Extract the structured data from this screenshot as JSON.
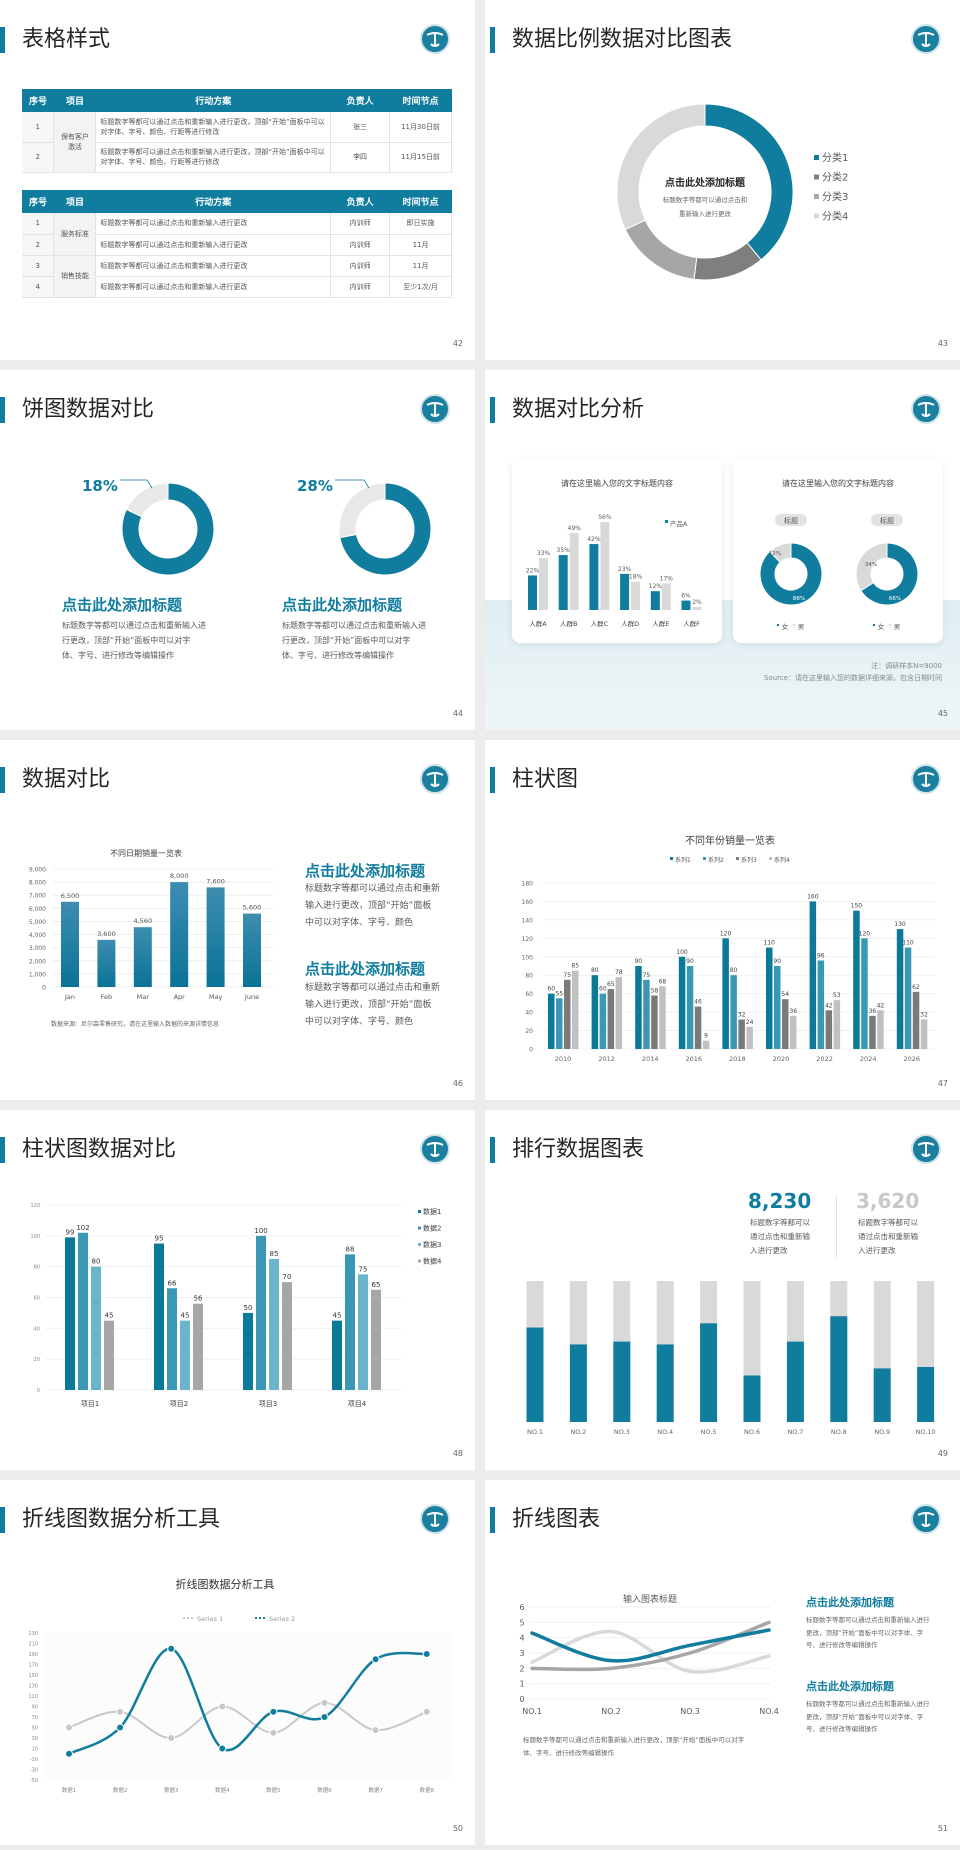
{
  "colors": {
    "accent": "#117d9e",
    "teal2": "#3a98b5",
    "teal3": "#6ab4cc",
    "gray_dark": "#7a7a7a",
    "gray": "#a6a6a6",
    "gray_light": "#d9d9d9"
  },
  "logo_icon": "anchor-emblem",
  "s42": {
    "title": "表格样式",
    "page": "42",
    "tables": [
      {
        "headers": [
          "序号",
          "项目",
          "行动方案",
          "负责人",
          "时间节点"
        ],
        "groups": [
          {
            "label": "保有客户激活",
            "span": 2
          }
        ],
        "rows": [
          {
            "no": "1",
            "action": "标题数字等都可以通过点击和重新输入进行更改，顶部“开始”面板中可以对字体、字号、颜色、行距等进行修改",
            "owner": "张三",
            "time": "11月30日前"
          },
          {
            "no": "2",
            "action": "标题数字等都可以通过点击和重新输入进行更改，顶部“开始”面板中可以对字体、字号、颜色、行距等进行修改",
            "owner": "李四",
            "time": "11月15日前"
          }
        ]
      },
      {
        "headers": [
          "序号",
          "项目",
          "行动方案",
          "负责人",
          "时间节点"
        ],
        "groups": [
          {
            "label": "服务标准",
            "span": 2
          },
          {
            "label": "销售技能",
            "span": 2
          }
        ],
        "rows": [
          {
            "no": "1",
            "action": "标题数字等都可以通过点击和重新输入进行更改",
            "owner": "内训师",
            "time": "即日实施"
          },
          {
            "no": "2",
            "action": "标题数字等都可以通过点击和重新输入进行更改",
            "owner": "内训师",
            "time": "11月"
          },
          {
            "no": "3",
            "action": "标题数字等都可以通过点击和重新输入进行更改",
            "owner": "内训师",
            "time": "11月"
          },
          {
            "no": "4",
            "action": "标题数字等都可以通过点击和重新输入进行更改",
            "owner": "内训师",
            "time": "至少1次/月"
          }
        ]
      }
    ]
  },
  "s43": {
    "title": "数据比例数据对比图表",
    "page": "43",
    "center_title": "点击此处添加标题",
    "center_text": [
      "标题数字等都可以通过点击和",
      "重新输入进行更改"
    ],
    "chart_data": {
      "type": "pie",
      "donut": true,
      "categories": [
        "分类1",
        "分类2",
        "分类3",
        "分类4"
      ],
      "values": [
        39,
        13,
        16,
        32
      ],
      "colors": [
        "#117d9e",
        "#7f7f7f",
        "#a6a6a6",
        "#d9d9d9"
      ],
      "legend": "right"
    }
  },
  "s44": {
    "title": "饼图数据对比",
    "page": "44",
    "items": [
      {
        "percent_label": "18%",
        "value": 18,
        "heading": "点击此处添加标题",
        "text": [
          "标题数字等都可以通过点击和重新输入进",
          "行更改，顶部“开始”面板中可以对字",
          "体、字号、进行修改等编辑操作"
        ]
      },
      {
        "percent_label": "28%",
        "value": 28,
        "heading": "点击此处添加标题",
        "text": [
          "标题数字等都可以通过点击和重新输入进",
          "行更改，顶部“开始”面板中可以对字",
          "体、字号、进行修改等编辑操作"
        ]
      }
    ]
  },
  "s45": {
    "title": "数据对比分析",
    "page": "45",
    "card1_title": "请在这里输入您的文字标题内容",
    "card2_title": "请在这里输入您的文字标题内容",
    "chart_data": [
      {
        "type": "bar",
        "categories": [
          "人群A",
          "人群B",
          "人群C",
          "人群D",
          "人群E",
          "人群F"
        ],
        "series": [
          {
            "name": "产品A",
            "values": [
              22,
              35,
              42,
              23,
              12,
              6
            ],
            "labels": [
              "22%",
              "35%",
              "42%",
              "23%",
              "12%",
              "6%"
            ]
          },
          {
            "values": [
              33,
              49,
              56,
              18,
              17,
              2
            ],
            "labels": [
              "33%",
              "49%",
              "56%",
              "18%",
              "17%",
              "2%"
            ]
          }
        ],
        "legend": "top-right"
      },
      {
        "type": "pie",
        "donut": true,
        "title": "标题",
        "categories": [
          "女",
          "男"
        ],
        "values": [
          88,
          12
        ],
        "labels": [
          "88%",
          "12%"
        ]
      },
      {
        "type": "pie",
        "donut": true,
        "title": "标题",
        "categories": [
          "女",
          "男"
        ],
        "values": [
          66,
          34
        ],
        "labels": [
          "66%",
          "34%"
        ]
      }
    ],
    "note": "注：调研样本N=9000",
    "source": "Source：请在这里输入您的数据详细来源，包含日期时间"
  },
  "s46": {
    "title": "数据对比",
    "page": "46",
    "source": "数据来源：尼尔森零售研究，请在这里输入数据的来源详情信息",
    "blocks": [
      {
        "heading": "点击此处添加标题",
        "text": [
          "标题数字等都可以通过点击和重新",
          "输入进行更改，顶部“开始”面板",
          "中可以对字体、字号、颜色"
        ]
      },
      {
        "heading": "点击此处添加标题",
        "text": [
          "标题数字等都可以通过点击和重新",
          "输入进行更改，顶部“开始”面板",
          "中可以对字体、字号、颜色"
        ]
      }
    ],
    "chart_data": {
      "type": "bar",
      "title": "不同日期销量一览表",
      "categories": [
        "Jan",
        "Feb",
        "Mar",
        "Apr",
        "May",
        "June"
      ],
      "values": [
        6500,
        3600,
        4560,
        8000,
        7600,
        5600
      ],
      "labels": [
        "6,500",
        "3,600",
        "4,560",
        "8,000",
        "7,600",
        "5,600"
      ],
      "ylim": [
        0,
        9000
      ],
      "yticks": [
        "0",
        "1,000",
        "2,000",
        "3,000",
        "4,000",
        "5,000",
        "6,000",
        "7,000",
        "8,000",
        "9,000"
      ],
      "grid": true
    }
  },
  "s47": {
    "title": "柱状图",
    "page": "47",
    "chart_data": {
      "type": "bar",
      "title": "不同年份销量一览表",
      "categories": [
        "2010",
        "2012",
        "2014",
        "2016",
        "2018",
        "2020",
        "2022",
        "2024",
        "2026"
      ],
      "series": [
        {
          "name": "系列1",
          "values": [
            60,
            80,
            90,
            100,
            120,
            110,
            160,
            150,
            130
          ]
        },
        {
          "name": "系列2",
          "values": [
            55,
            60,
            75,
            90,
            80,
            90,
            96,
            120,
            110
          ]
        },
        {
          "name": "系列3",
          "values": [
            75,
            65,
            58,
            46,
            32,
            54,
            42,
            36,
            62
          ]
        },
        {
          "name": "系列4",
          "values": [
            85,
            78,
            68,
            9,
            24,
            36,
            53,
            42,
            32
          ]
        }
      ],
      "colors": [
        "#0b7a99",
        "#3a98b5",
        "#7a7a7a",
        "#c0c0c0"
      ],
      "ylim": [
        0,
        180
      ],
      "yticks": [
        "0",
        "20",
        "40",
        "60",
        "80",
        "100",
        "120",
        "140",
        "160",
        "180"
      ],
      "legend": "top",
      "grid": true
    }
  },
  "s48": {
    "title": "柱状图数据对比",
    "page": "48",
    "chart_data": {
      "type": "bar",
      "categories": [
        "项目1",
        "项目2",
        "项目3",
        "项目4"
      ],
      "series": [
        {
          "name": "数据1",
          "values": [
            99,
            95,
            50,
            45
          ]
        },
        {
          "name": "数据2",
          "values": [
            102,
            66,
            100,
            88
          ]
        },
        {
          "name": "数据3",
          "values": [
            80,
            45,
            85,
            75
          ]
        },
        {
          "name": "数据4",
          "values": [
            45,
            56,
            70,
            65
          ]
        }
      ],
      "colors": [
        "#0b7a99",
        "#3a98b5",
        "#6ab4cc",
        "#a6a6a6"
      ],
      "ylim": [
        0,
        120
      ],
      "yticks": [
        "0",
        "20",
        "40",
        "60",
        "80",
        "100",
        "120"
      ],
      "legend": "right",
      "grid": true
    }
  },
  "s49": {
    "title": "排行数据图表",
    "page": "49",
    "stats": [
      {
        "value": "8,230",
        "text": [
          "标题数字等都可以",
          "通过点击和重新输",
          "入进行更改"
        ]
      },
      {
        "value": "3,620",
        "text": [
          "标题数字等都可以",
          "通过点击和重新输",
          "入进行更改"
        ]
      }
    ],
    "chart_data": {
      "type": "bar",
      "stacked_percent": true,
      "categories": [
        "NO.1",
        "NO.2",
        "NO.3",
        "NO.4",
        "NO.5",
        "NO.6",
        "NO.7",
        "NO.8",
        "NO.9",
        "NO.10"
      ],
      "values": [
        67,
        55,
        57,
        55,
        70,
        33,
        57,
        75,
        38,
        39
      ],
      "ylim": [
        0,
        100
      ]
    }
  },
  "s50": {
    "title": "折线图数据分析工具",
    "page": "50",
    "chart_data": {
      "type": "line",
      "smooth": true,
      "title": "折线图数据分析工具",
      "categories": [
        "数据1",
        "数据2",
        "数据3",
        "数据4",
        "数据5",
        "数据6",
        "数据7",
        "数据8"
      ],
      "series": [
        {
          "name": "Series 1",
          "values": [
            50,
            80,
            30,
            90,
            40,
            97,
            45,
            80
          ]
        },
        {
          "name": "Series 2",
          "values": [
            0,
            50,
            200,
            10,
            80,
            70,
            180,
            190
          ]
        }
      ],
      "colors": [
        "#c8c8c8",
        "#117d9e"
      ],
      "ylim": [
        -50,
        230
      ],
      "yticks": [
        "-50",
        "-30",
        "-10",
        "10",
        "30",
        "50",
        "70",
        "90",
        "110",
        "130",
        "150",
        "170",
        "190",
        "210",
        "230"
      ],
      "legend": "top"
    }
  },
  "s51": {
    "title": "折线图表",
    "page": "51",
    "caption": [
      "标题数字等都可以通过点击和重新输入进行更改，顶部“开始”面板中可以对字",
      "体、字号、进行修改等编辑操作"
    ],
    "blocks": [
      {
        "heading": "点击此处添加标题",
        "text": [
          "标题数字等都可以通过点击和重新输入进行",
          "更改，顶部“开始”面板中可以对字体、字",
          "号、进行修改等编辑操作"
        ]
      },
      {
        "heading": "点击此处添加标题",
        "text": [
          "标题数字等都可以通过点击和重新输入进行",
          "更改，顶部“开始”面板中可以对字体、字",
          "号、进行修改等编辑操作"
        ]
      }
    ],
    "chart_data": {
      "type": "line",
      "smooth": true,
      "title": "输入图表标题",
      "categories": [
        "NO.1",
        "NO.2",
        "NO.3",
        "NO.4"
      ],
      "series": [
        {
          "values": [
            4.3,
            2.5,
            3.5,
            4.5
          ]
        },
        {
          "values": [
            2.4,
            4.4,
            1.8,
            2.8
          ]
        },
        {
          "values": [
            2,
            2,
            3,
            5
          ]
        }
      ],
      "colors": [
        "#117d9e",
        "#d9d9d9",
        "#a6a6a6"
      ],
      "ylim": [
        0,
        6
      ],
      "yticks": [
        "0",
        "1",
        "2",
        "3",
        "4",
        "5",
        "6"
      ],
      "grid": true
    }
  }
}
